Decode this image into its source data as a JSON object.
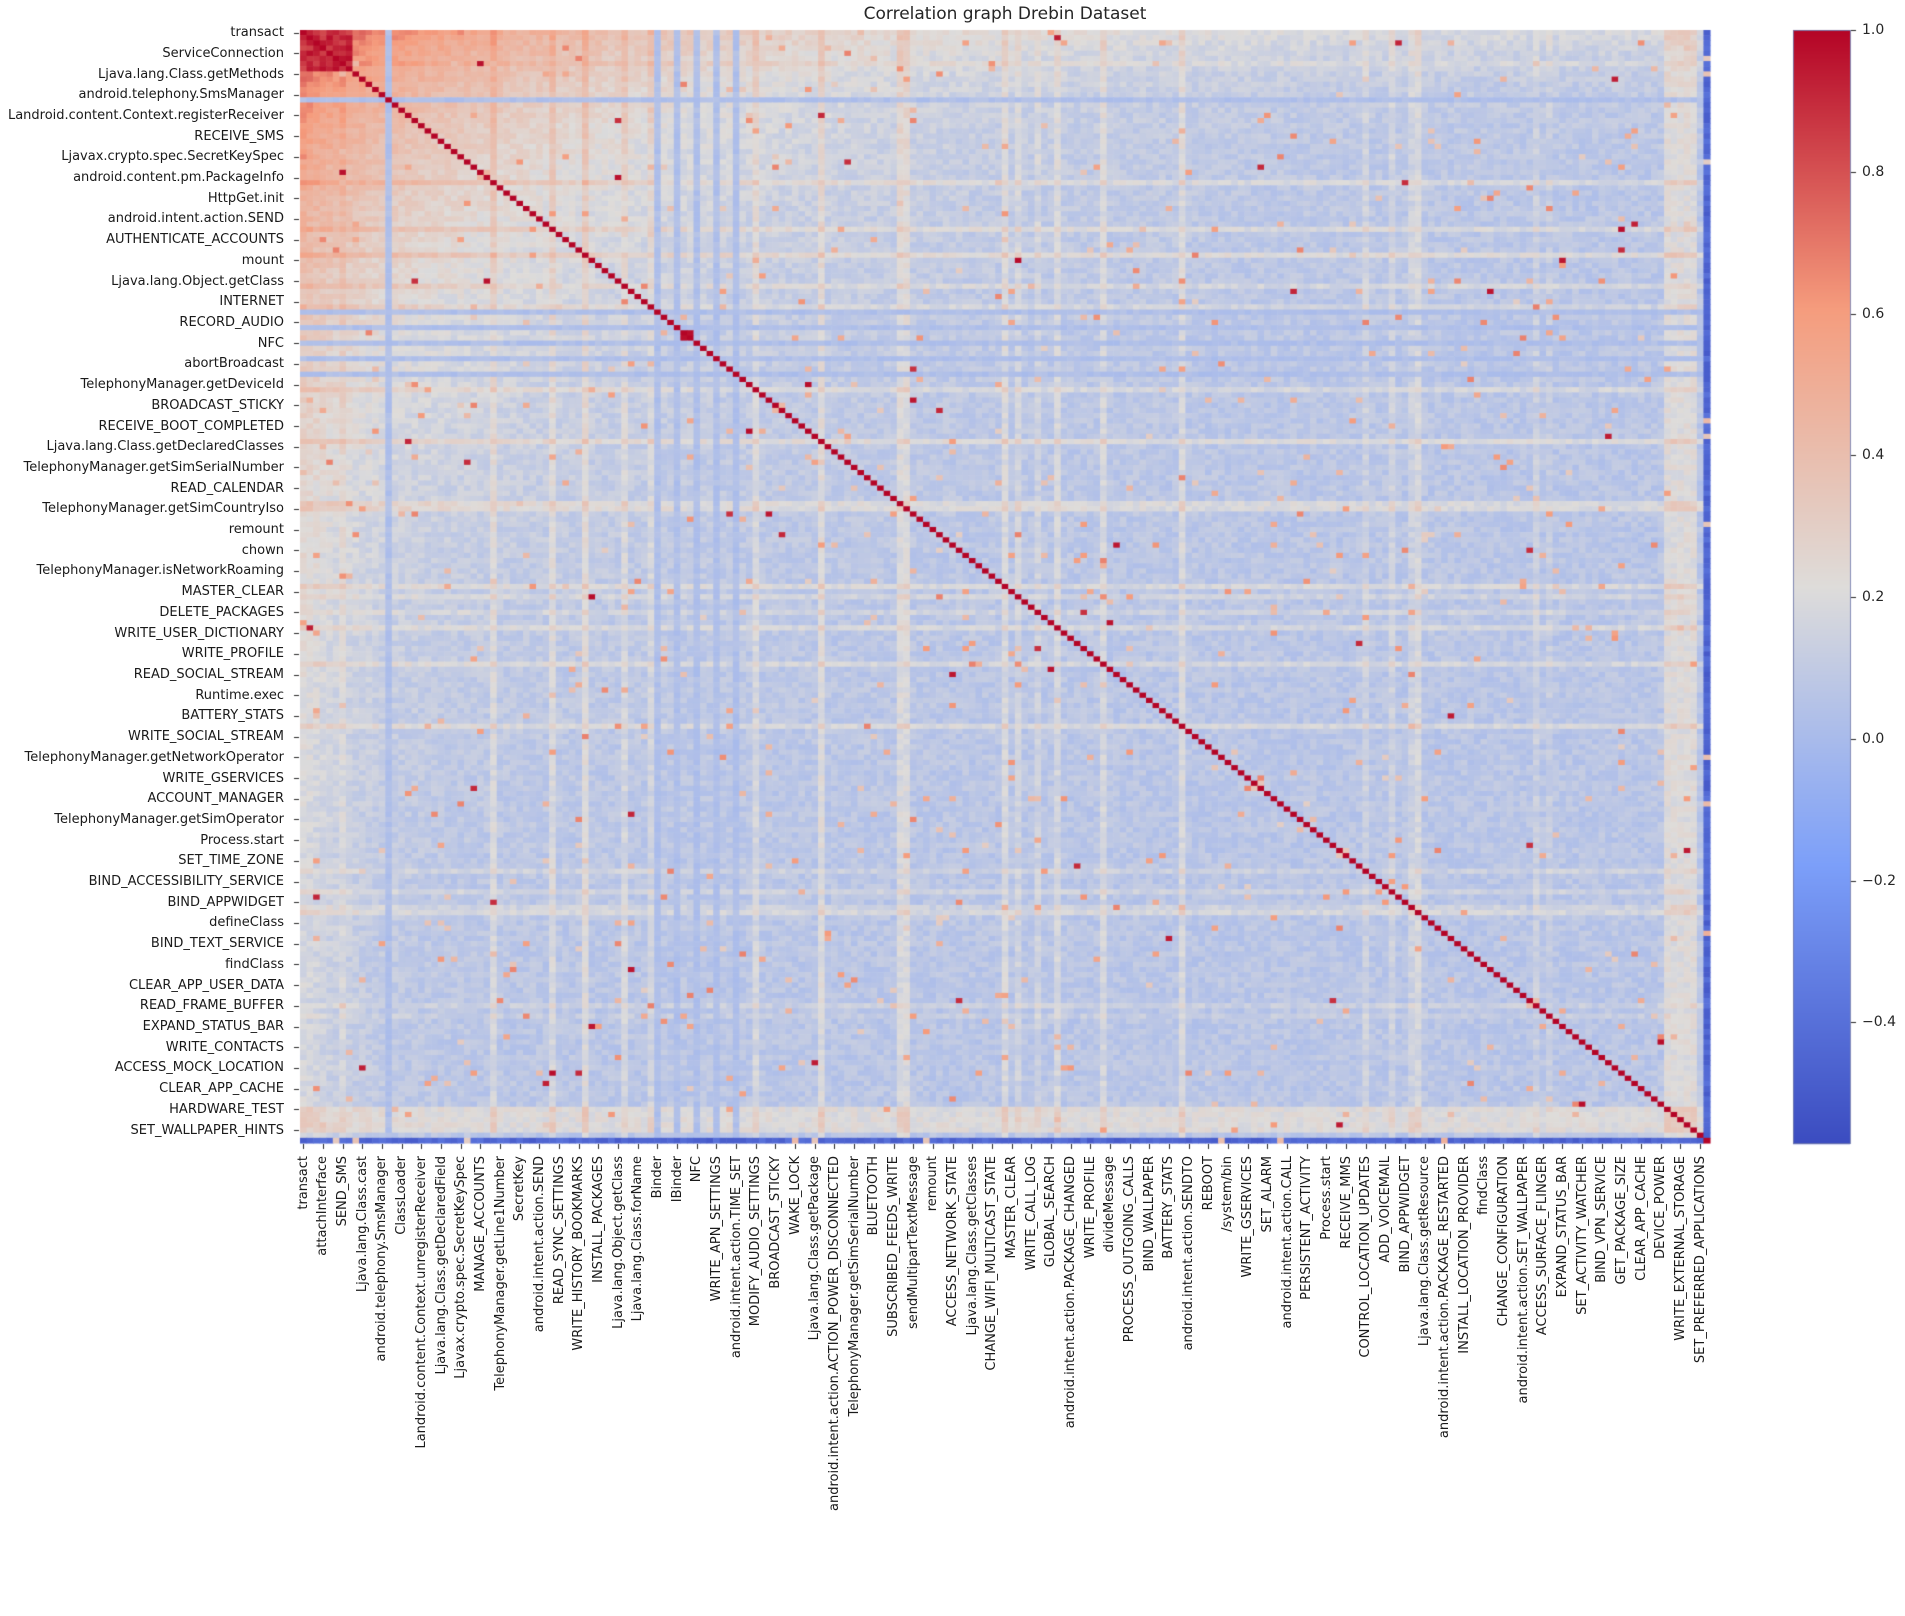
{
  "title": "Correlation graph Drebin Dataset",
  "chart_data": {
    "type": "heatmap",
    "title": "Correlation graph Drebin Dataset",
    "matrix_size": 215,
    "x_tick_step": 3,
    "y_tick_step": 4,
    "grid": false,
    "y_labels": [
      "transact",
      "ServiceConnection",
      "Ljava.lang.Class.getMethods",
      "android.telephony.SmsManager",
      "Landroid.content.Context.registerReceiver",
      "RECEIVE_SMS",
      "Ljavax.crypto.spec.SecretKeySpec",
      "android.content.pm.PackageInfo",
      "HttpGet.init",
      "android.intent.action.SEND",
      "AUTHENTICATE_ACCOUNTS",
      "mount",
      "Ljava.lang.Object.getClass",
      "INTERNET",
      "RECORD_AUDIO",
      "NFC",
      "abortBroadcast",
      "TelephonyManager.getDeviceId",
      "BROADCAST_STICKY",
      "RECEIVE_BOOT_COMPLETED",
      "Ljava.lang.Class.getDeclaredClasses",
      "TelephonyManager.getSimSerialNumber",
      "READ_CALENDAR",
      "TelephonyManager.getSimCountryIso",
      "remount",
      "chown",
      "TelephonyManager.isNetworkRoaming",
      "MASTER_CLEAR",
      "DELETE_PACKAGES",
      "WRITE_USER_DICTIONARY",
      "WRITE_PROFILE",
      "READ_SOCIAL_STREAM",
      "Runtime.exec",
      "BATTERY_STATS",
      "WRITE_SOCIAL_STREAM",
      "TelephonyManager.getNetworkOperator",
      "WRITE_GSERVICES",
      "ACCOUNT_MANAGER",
      "TelephonyManager.getSimOperator",
      "Process.start",
      "SET_TIME_ZONE",
      "BIND_ACCESSIBILITY_SERVICE",
      "BIND_APPWIDGET",
      "defineClass",
      "BIND_TEXT_SERVICE",
      "findClass",
      "CLEAR_APP_USER_DATA",
      "READ_FRAME_BUFFER",
      "EXPAND_STATUS_BAR",
      "WRITE_CONTACTS",
      "ACCESS_MOCK_LOCATION",
      "CLEAR_APP_CACHE",
      "HARDWARE_TEST",
      "SET_WALLPAPER_HINTS"
    ],
    "x_labels": [
      "transact",
      "attachInterface",
      "SEND_SMS",
      "Ljava.lang.Class.cast",
      "android.telephony.SmsManager",
      "ClassLoader",
      "Landroid.content.Context.unregisterReceiver",
      "Ljava.lang.Class.getDeclaredField",
      "Ljavax.crypto.spec.SecretKeySpec",
      "MANAGE_ACCOUNTS",
      "TelephonyManager.getLine1Number",
      "SecretKey",
      "android.intent.action.SEND",
      "READ_SYNC_SETTINGS",
      "WRITE_HISTORY_BOOKMARKS",
      "INSTALL_PACKAGES",
      "Ljava.lang.Object.getClass",
      "Ljava.lang.Class.forName",
      "Binder",
      "IBinder",
      "NFC",
      "WRITE_APN_SETTINGS",
      "android.intent.action.TIME_SET",
      "MODIFY_AUDIO_SETTINGS",
      "BROADCAST_STICKY",
      "WAKE_LOCK",
      "Ljava.lang.Class.getPackage",
      "android.intent.action.ACTION_POWER_DISCONNECTED",
      "TelephonyManager.getSimSerialNumber",
      "BLUETOOTH",
      "SUBSCRIBED_FEEDS_WRITE",
      "sendMultipartTextMessage",
      "remount",
      "ACCESS_NETWORK_STATE",
      "Ljava.lang.Class.getClasses",
      "CHANGE_WIFI_MULTICAST_STATE",
      "MASTER_CLEAR",
      "WRITE_CALL_LOG",
      "GLOBAL_SEARCH",
      "android.intent.action.PACKAGE_CHANGED",
      "WRITE_PROFILE",
      "divideMessage",
      "PROCESS_OUTGOING_CALLS",
      "BIND_WALLPAPER",
      "BATTERY_STATS",
      "android.intent.action.SENDTO",
      "REBOOT",
      "/system/bin",
      "WRITE_GSERVICES",
      "SET_ALARM",
      "android.intent.action.CALL",
      "PERSISTENT_ACTIVITY",
      "Process.start",
      "RECEIVE_MMS",
      "CONTROL_LOCATION_UPDATES",
      "ADD_VOICEMAIL",
      "BIND_APPWIDGET",
      "Ljava.lang.Class.getResource",
      "android.intent.action.PACKAGE_RESTARTED",
      "INSTALL_LOCATION_PROVIDER",
      "findClass",
      "CHANGE_CONFIGURATION",
      "android.intent.action.SET_WALLPAPER",
      "ACCESS_SURFACE_FLINGER",
      "EXPAND_STATUS_BAR",
      "SET_ACTIVITY_WATCHER",
      "BIND_VPN_SERVICE",
      "GET_PACKAGE_SIZE",
      "CLEAR_APP_CACHE",
      "DEVICE_POWER",
      "WRITE_EXTERNAL_STORAGE",
      "SET_PREFERRED_APPLICATIONS"
    ],
    "colorbar": {
      "ticks": [
        1.0,
        0.8,
        0.6,
        0.4,
        0.2,
        0.0,
        -0.2,
        -0.4
      ],
      "tick_labels": [
        "1.0",
        "0.8",
        "0.6",
        "0.4",
        "0.2",
        "0.0",
        "−0.2",
        "−0.4"
      ],
      "vmin": -0.57,
      "vmax": 1.0,
      "colormap": "coolwarm"
    },
    "colormap_stops": [
      "#3b4cc0",
      "#7c9ff9",
      "#dedcda",
      "#f59c7d",
      "#b40426"
    ],
    "generation": {
      "seed": 11,
      "baseline": [
        0.02,
        0.12
      ],
      "hot_block": {
        "end": 8,
        "value": [
          0.82,
          0.98
        ]
      },
      "warm_decay": {
        "amplitude": 0.62,
        "scale": 48
      },
      "edge_warm": {
        "amplitude": 0.1,
        "scale": 7
      },
      "cool_stripes": [
        13,
        54,
        57,
        60,
        63,
        66
      ],
      "warm_rows": {
        "start": 208,
        "end": 212,
        "bias": 0.14
      },
      "row_bias": {
        "probability": 0.1,
        "value": [
          0.04,
          0.14
        ]
      },
      "speckle": {
        "probability": 0.016,
        "value": [
          0.3,
          0.68
        ]
      },
      "hot_speckle": {
        "probability": 0.0015,
        "value": [
          0.88,
          0.98
        ]
      },
      "negative_last": {
        "value": -0.45,
        "noise": 0.12,
        "break_probability": 0.05,
        "break_value": [
          0.3,
          0.6
        ]
      },
      "diagonal": 1.0,
      "clamp": [
        -0.5,
        1.0
      ]
    }
  }
}
